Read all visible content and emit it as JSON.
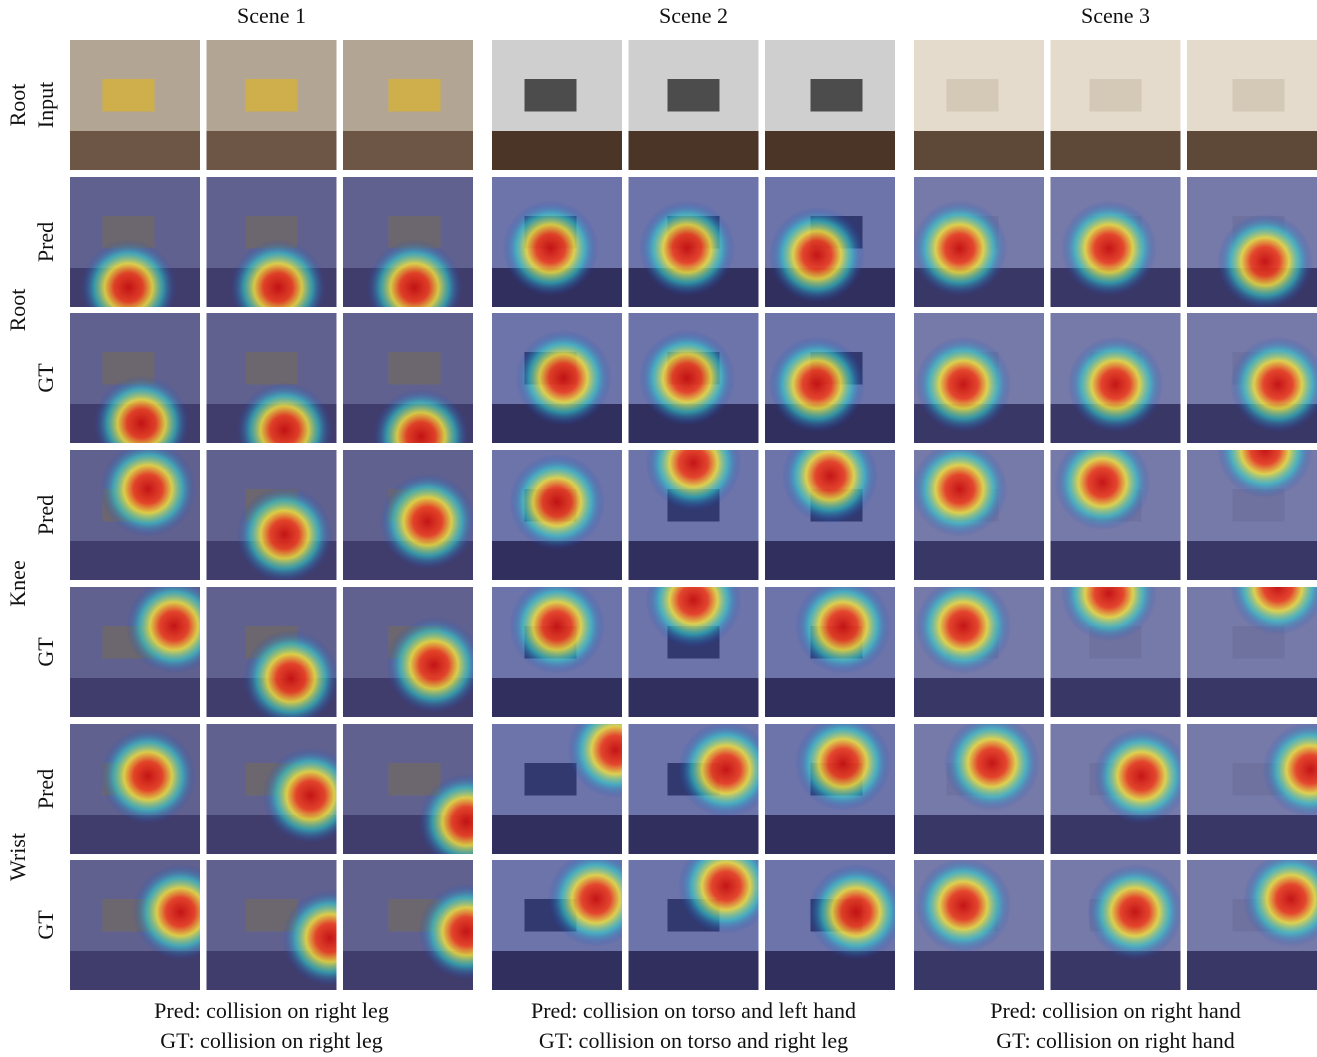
{
  "scenes": [
    {
      "title": "Scene 1",
      "caption": [
        "Pred: collision on right leg",
        "GT: collision on right leg"
      ]
    },
    {
      "title": "Scene 2",
      "caption": [
        "Pred: collision on torso and left hand",
        "GT: collision on torso and right leg"
      ]
    },
    {
      "title": "Scene 3",
      "caption": [
        "Pred: collision on right hand",
        "GT: collision on right hand"
      ]
    }
  ],
  "row_groups": [
    {
      "label": "Root",
      "rows": [
        "Input"
      ]
    },
    {
      "label": "Root",
      "rows": [
        "Pred",
        "GT"
      ]
    },
    {
      "label": "Knee",
      "rows": [
        "Pred",
        "GT"
      ]
    },
    {
      "label": "Wrist",
      "rows": [
        "Pred",
        "GT"
      ]
    }
  ]
}
